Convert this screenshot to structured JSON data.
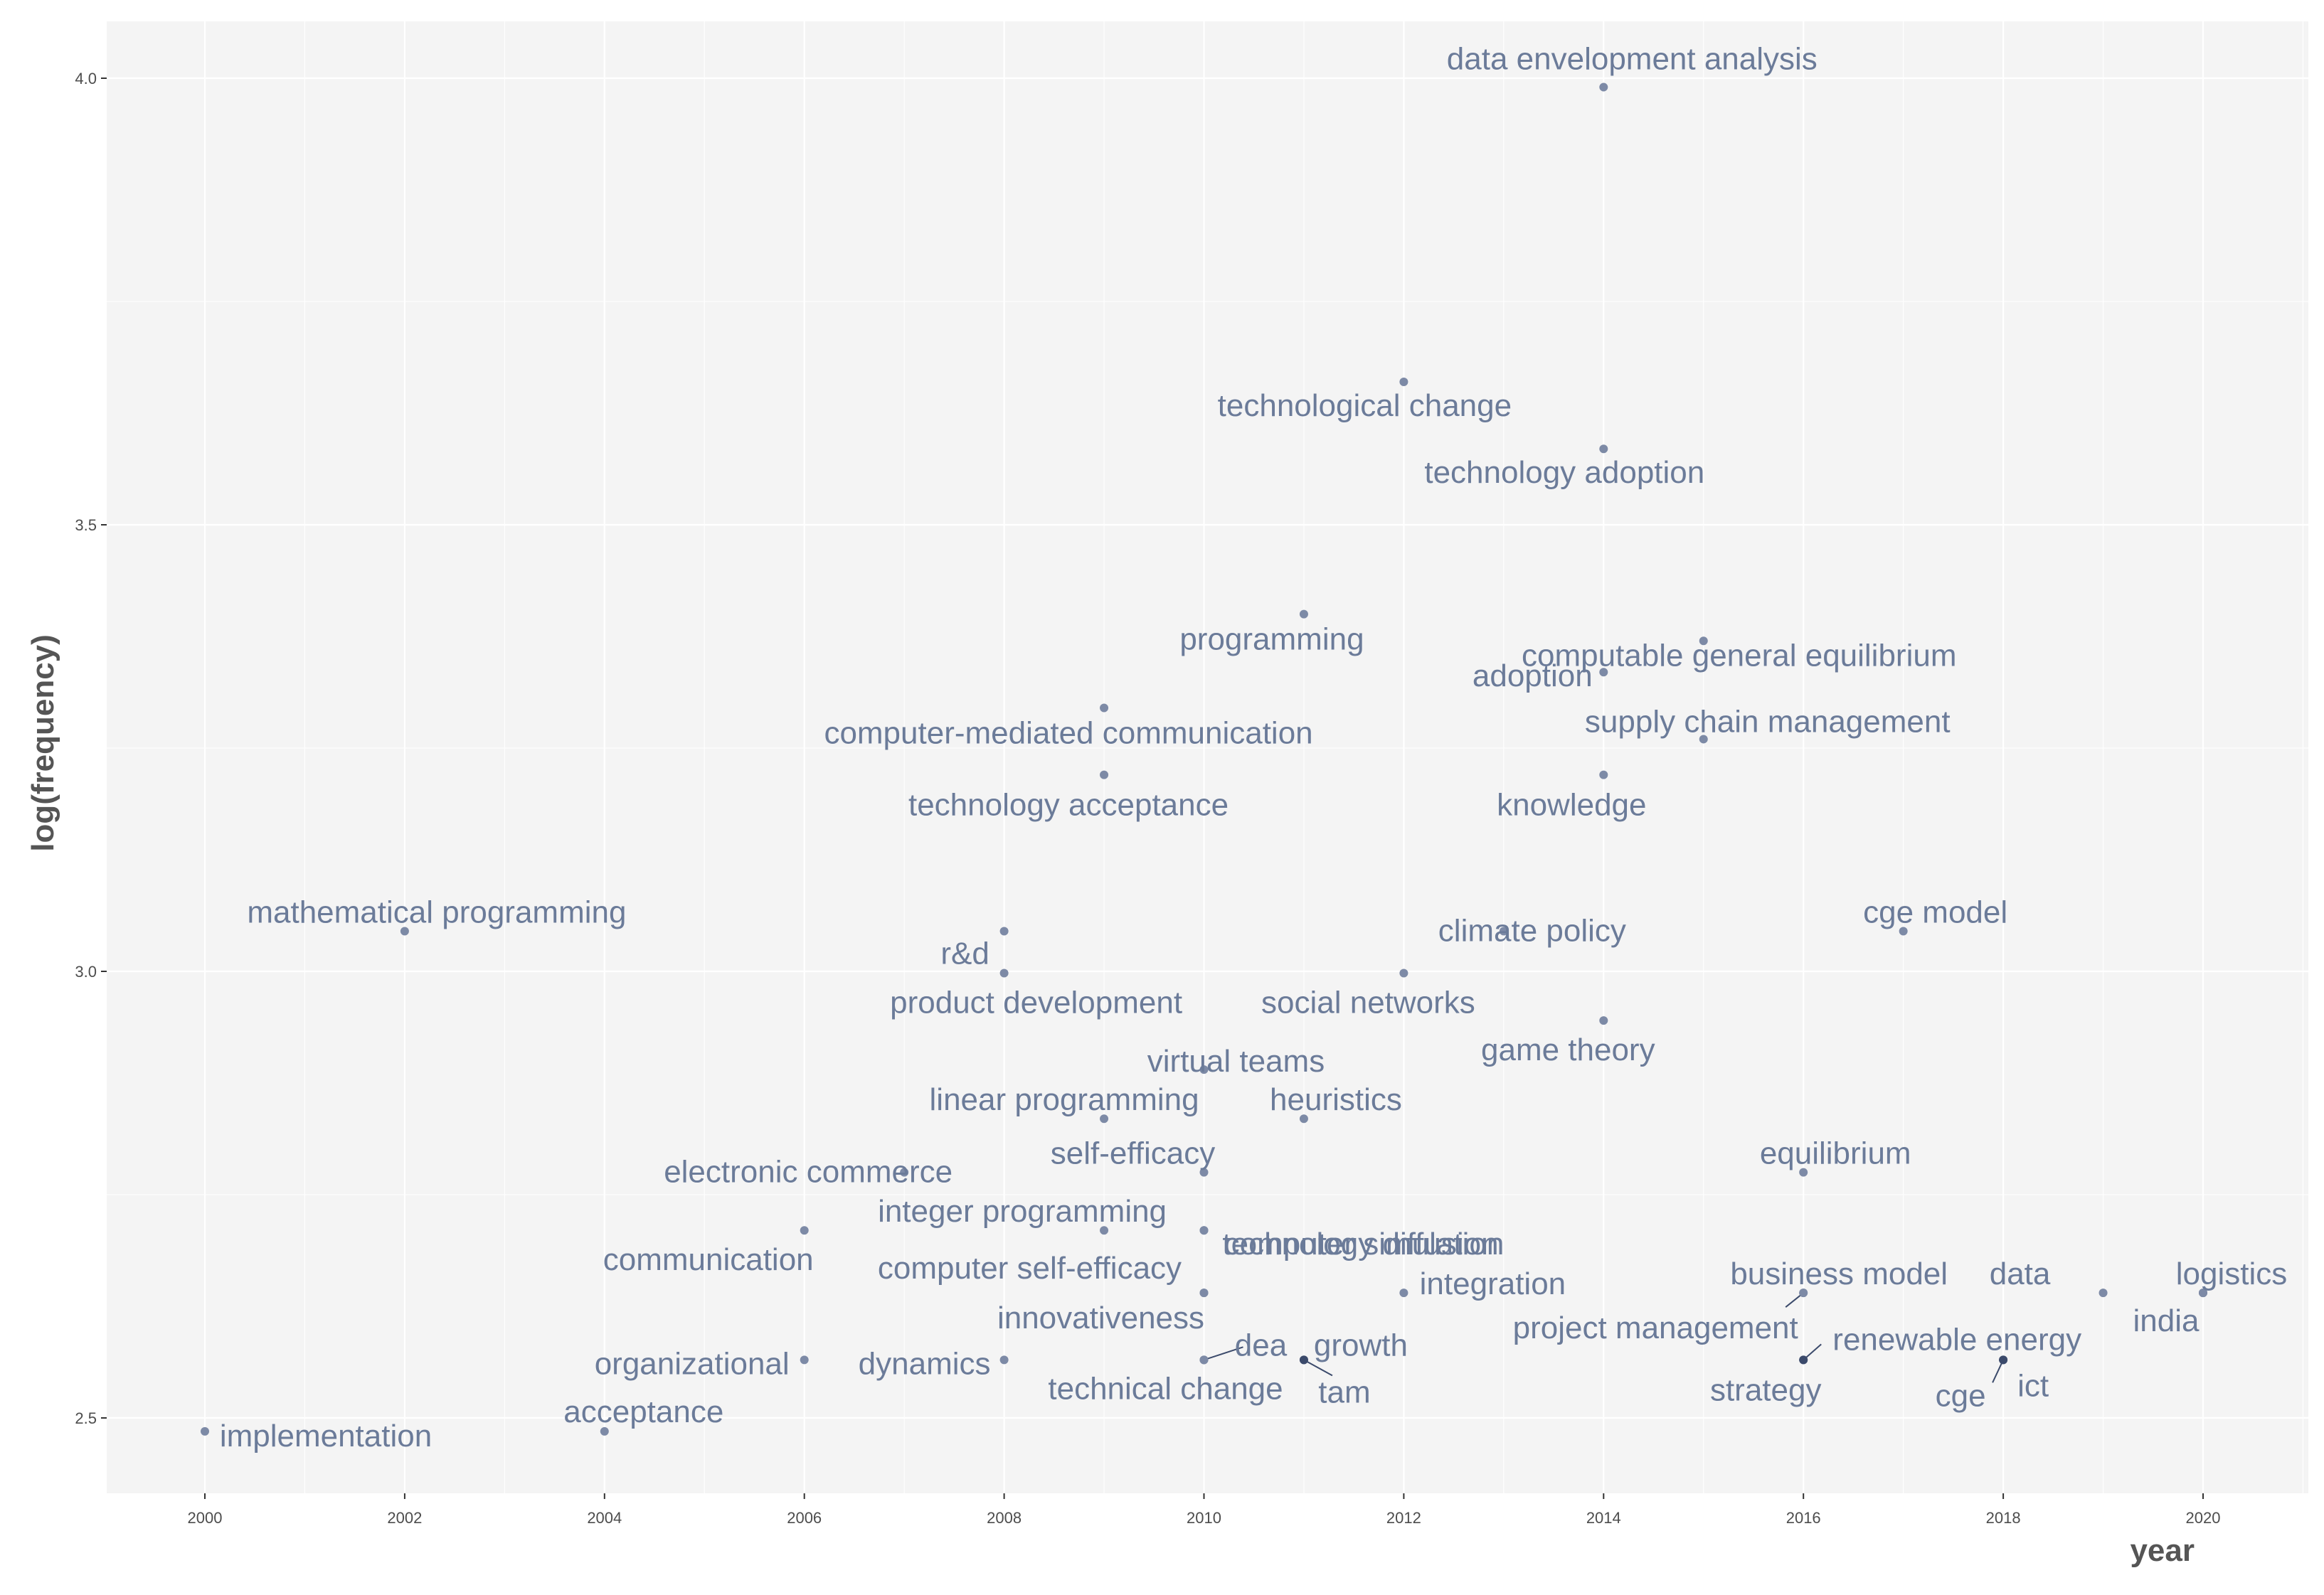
{
  "chart_data": {
    "type": "scatter",
    "title": "",
    "xlabel": "year",
    "ylabel": "log(frequency)",
    "xlim": [
      1999,
      2021
    ],
    "ylim": [
      2.42,
      4.06
    ],
    "x_ticks": [
      2000,
      2002,
      2004,
      2006,
      2008,
      2010,
      2012,
      2014,
      2016,
      2018,
      2020
    ],
    "x_tick_labels": [
      "2000",
      "2002",
      "2004",
      "2006",
      "2008",
      "2010",
      "2012",
      "2014",
      "2016",
      "2018",
      "2020"
    ],
    "y_ticks": [
      2.5,
      3.0,
      3.5,
      4.0
    ],
    "y_tick_labels": [
      "2.5",
      "3.0",
      "3.5",
      "4.0"
    ],
    "grid": true,
    "legend": "none",
    "colors": {
      "panel": "#f4f4f4",
      "grid": "#ffffff",
      "point": "#7d8aa6",
      "point_dark": "#3b4a6b",
      "label": "#6b7b99"
    },
    "points": [
      {
        "term": "data envelopment analysis",
        "x": 2014,
        "y": 3.99
      },
      {
        "term": "technological change",
        "x": 2012,
        "y": 3.66
      },
      {
        "term": "technology adoption",
        "x": 2014,
        "y": 3.585
      },
      {
        "term": "programming",
        "x": 2011,
        "y": 3.4
      },
      {
        "term": "computable general equilibrium",
        "x": 2015,
        "y": 3.37
      },
      {
        "term": "adoption",
        "x": 2014,
        "y": 3.335
      },
      {
        "term": "computer-mediated communication",
        "x": 2009,
        "y": 3.295
      },
      {
        "term": "supply chain management",
        "x": 2015,
        "y": 3.26
      },
      {
        "term": "technology acceptance",
        "x": 2009,
        "y": 3.22
      },
      {
        "term": "knowledge",
        "x": 2014,
        "y": 3.22
      },
      {
        "term": "mathematical programming",
        "x": 2002,
        "y": 3.045
      },
      {
        "term": "climate policy",
        "x": 2013,
        "y": 3.045
      },
      {
        "term": "cge model",
        "x": 2017,
        "y": 3.045
      },
      {
        "term": "r&d",
        "x": 2008,
        "y": 3.045
      },
      {
        "term": "product development",
        "x": 2008,
        "y": 2.998
      },
      {
        "term": "social networks",
        "x": 2012,
        "y": 2.998
      },
      {
        "term": "game theory",
        "x": 2014,
        "y": 2.945
      },
      {
        "term": "virtual teams",
        "x": 2010,
        "y": 2.89
      },
      {
        "term": "linear programming",
        "x": 2009,
        "y": 2.835
      },
      {
        "term": "heuristics",
        "x": 2011,
        "y": 2.835
      },
      {
        "term": "electronic commerce",
        "x": 2007,
        "y": 2.775
      },
      {
        "term": "self-efficacy",
        "x": 2010,
        "y": 2.775
      },
      {
        "term": "equilibrium",
        "x": 2016,
        "y": 2.775
      },
      {
        "term": "computer simulation",
        "x": 2010,
        "y": 2.71
      },
      {
        "term": "integer programming",
        "x": 2009,
        "y": 2.71
      },
      {
        "term": "technology diffusion",
        "x": 2010,
        "y": 2.71
      },
      {
        "term": "communication",
        "x": 2006,
        "y": 2.71
      },
      {
        "term": "computer self-efficacy",
        "x": 2010,
        "y": 2.64
      },
      {
        "term": "integration",
        "x": 2012,
        "y": 2.64
      },
      {
        "term": "business model",
        "x": 2016,
        "y": 2.64
      },
      {
        "term": "data",
        "x": 2019,
        "y": 2.64
      },
      {
        "term": "logistics",
        "x": 2020,
        "y": 2.64
      },
      {
        "term": "india",
        "x": 2020,
        "y": 2.64
      },
      {
        "term": "innovativeness",
        "x": 2010,
        "y": 2.64
      },
      {
        "term": "project management",
        "x": 2016,
        "y": 2.64
      },
      {
        "term": "dea",
        "x": 2010,
        "y": 2.565
      },
      {
        "term": "growth",
        "x": 2011,
        "y": 2.565
      },
      {
        "term": "renewable energy",
        "x": 2016,
        "y": 2.565
      },
      {
        "term": "organizational",
        "x": 2006,
        "y": 2.565
      },
      {
        "term": "dynamics",
        "x": 2008,
        "y": 2.565
      },
      {
        "term": "technical change",
        "x": 2010,
        "y": 2.565
      },
      {
        "term": "tam",
        "x": 2011,
        "y": 2.565
      },
      {
        "term": "strategy",
        "x": 2016,
        "y": 2.565
      },
      {
        "term": "ict",
        "x": 2018,
        "y": 2.565
      },
      {
        "term": "cge",
        "x": 2018,
        "y": 2.565
      },
      {
        "term": "acceptance",
        "x": 2004,
        "y": 2.485
      },
      {
        "term": "implementation",
        "x": 2000,
        "y": 2.485
      }
    ]
  }
}
